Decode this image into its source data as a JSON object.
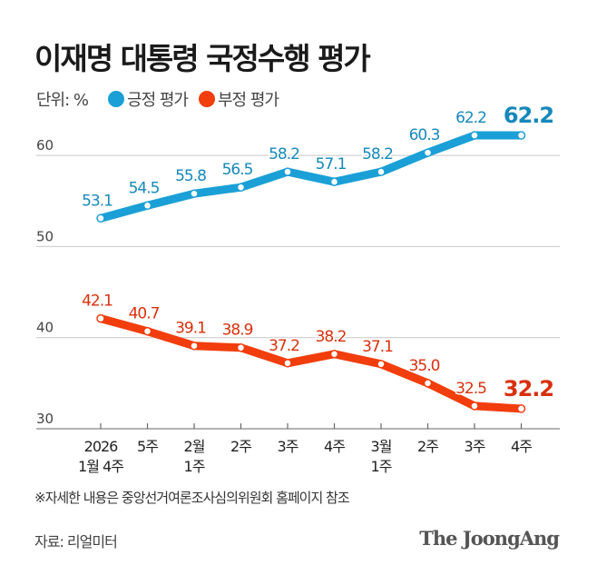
{
  "chart_data": {
    "type": "line",
    "title": "이재명 대통령 국정수행 평가",
    "unit_label": "단위: %",
    "categories": [
      [
        "2026",
        "1월 4주"
      ],
      [
        "5주"
      ],
      [
        "2월",
        "1주"
      ],
      [
        "2주"
      ],
      [
        "3주"
      ],
      [
        "4주"
      ],
      [
        "3월",
        "1주"
      ],
      [
        "2주"
      ],
      [
        "3주"
      ],
      [
        "4주"
      ]
    ],
    "series": [
      {
        "name": "긍정 평가",
        "color": "#1aa0d6",
        "label_color": "#1688bb",
        "values": [
          53.1,
          54.5,
          55.8,
          56.5,
          58.2,
          57.1,
          58.2,
          60.3,
          62.2,
          62.2
        ]
      },
      {
        "name": "부정 평가",
        "color": "#f23d0c",
        "label_color": "#d8300c",
        "values": [
          42.1,
          40.7,
          39.1,
          38.9,
          37.2,
          38.2,
          37.1,
          35.0,
          32.5,
          32.2
        ]
      }
    ],
    "yticks": [
      30,
      40,
      50,
      60
    ],
    "ylim": [
      30,
      62.2
    ],
    "grid": true,
    "legend_position": "top-left"
  },
  "footnote": "※자세한 내용은 중앙선거여론조사심의위원회 홈페이지 참조",
  "source": "자료: 리얼미터",
  "logo": "The JoongAng"
}
